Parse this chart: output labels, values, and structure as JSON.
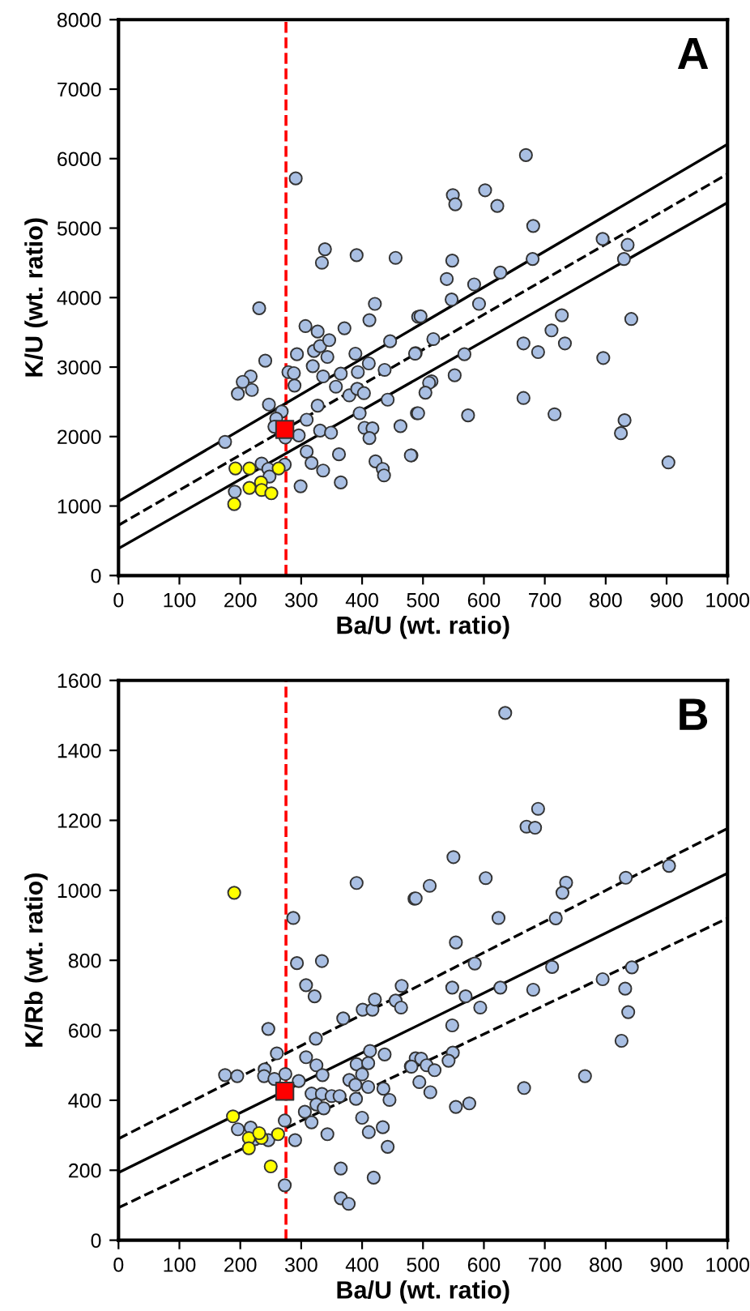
{
  "chart_data": [
    {
      "type": "scatter",
      "xlabel": "Ba/U (wt. ratio)",
      "ylabel": "K/U (wt. ratio)",
      "annotations": [
        "A"
      ],
      "xlim": [
        0,
        1000
      ],
      "ylim": [
        0,
        8000
      ],
      "xticks": [
        0,
        100,
        200,
        300,
        400,
        500,
        600,
        700,
        800,
        900,
        1000
      ],
      "yticks": [
        0,
        1000,
        2000,
        3000,
        4000,
        5000,
        6000,
        7000,
        8000
      ],
      "ref_lines": [
        {
          "axis": "x",
          "value": 275,
          "color": "#ff0000",
          "line_style": "dashed"
        }
      ],
      "series": [
        {
          "type": "line",
          "color": "#000000",
          "line_style": "solid",
          "x": [
            0,
            1000
          ],
          "values": [
            1067,
            6207
          ]
        },
        {
          "type": "line",
          "color": "#000000",
          "line_style": "dashed",
          "x": [
            0,
            1000
          ],
          "values": [
            724,
            5779
          ]
        },
        {
          "type": "line",
          "color": "#000000",
          "line_style": "solid",
          "x": [
            0,
            1000
          ],
          "values": [
            389,
            5366
          ]
        },
        {
          "color": "#a9bfe3",
          "marker": "circle",
          "x": [
            291,
            339,
            334,
            391,
            455,
            231,
            307,
            327,
            371,
            421,
            412,
            446,
            321,
            331,
            346,
            343,
            293,
            241,
            389,
            411,
            319,
            336,
            365,
            393,
            437,
            279,
            288,
            289,
            217,
            204,
            219,
            196,
            357,
            379,
            392,
            403,
            247,
            327,
            396,
            442,
            268,
            259,
            256,
            309,
            404,
            417,
            412,
            331,
            349,
            463,
            296,
            274,
            309,
            362,
            317,
            336,
            422,
            434,
            436,
            481,
            175,
            299,
            365,
            235,
            246,
            248,
            273,
            191,
            488,
            492,
            490,
            669,
            549,
            553,
            602,
            622,
            681,
            795,
            836,
            830,
            680,
            548,
            539,
            584,
            627,
            547,
            592,
            496,
            728,
            711,
            842,
            517,
            665,
            733,
            487,
            568,
            689,
            796,
            552,
            514,
            510,
            504,
            665,
            492,
            574,
            716,
            831,
            825,
            480,
            903
          ],
          "values": [
            5716,
            4696,
            4502,
            4611,
            4572,
            3847,
            3590,
            3512,
            3559,
            3910,
            3676,
            3372,
            3232,
            3302,
            3388,
            3146,
            3185,
            3092,
            3193,
            3053,
            3014,
            2866,
            2905,
            2928,
            2960,
            2928,
            2913,
            2734,
            2866,
            2788,
            2671,
            2617,
            2718,
            2593,
            2687,
            2625,
            2461,
            2445,
            2336,
            2531,
            2360,
            2259,
            2142,
            2243,
            2126,
            2118,
            1978,
            2087,
            2056,
            2150,
            2017,
            1986,
            1783,
            1745,
            1620,
            1511,
            1643,
            1534,
            1441,
            1729,
            1924,
            1285,
            1340,
            1612,
            1534,
            1425,
            1597,
            1207,
            3201,
            3723,
            2336,
            6051,
            5475,
            5343,
            5545,
            5319,
            5031,
            4844,
            4759,
            4556,
            4556,
            4533,
            4268,
            4190,
            4361,
            3972,
            3910,
            3731,
            3746,
            3528,
            3692,
            3403,
            3341,
            3341,
            3193,
            3185,
            3216,
            3131,
            2882,
            2796,
            2773,
            2632,
            2555,
            2336,
            2305,
            2321,
            2235,
            2048,
            1729,
            1628
          ]
        },
        {
          "color": "#ffff00",
          "marker": "circle",
          "x": [
            192,
            215,
            263,
            215,
            234,
            235,
            251,
            190
          ],
          "values": [
            1542,
            1542,
            1542,
            1262,
            1340,
            1231,
            1184,
            1028
          ]
        },
        {
          "color": "#ff0000",
          "marker": "square",
          "x": [
            273
          ],
          "values": [
            2103
          ]
        }
      ]
    },
    {
      "type": "scatter",
      "xlabel": "Ba/U (wt. ratio)",
      "ylabel": "K/Rb (wt. ratio)",
      "annotations": [
        "B"
      ],
      "xlim": [
        0,
        1000
      ],
      "ylim": [
        0,
        1600
      ],
      "xticks": [
        0,
        100,
        200,
        300,
        400,
        500,
        600,
        700,
        800,
        900,
        1000
      ],
      "yticks": [
        0,
        200,
        400,
        600,
        800,
        1000,
        1200,
        1400,
        1600
      ],
      "ref_lines": [
        {
          "axis": "x",
          "value": 275,
          "color": "#ff0000",
          "line_style": "dashed"
        }
      ],
      "series": [
        {
          "type": "line",
          "color": "#000000",
          "line_style": "dashed",
          "x": [
            0,
            1000
          ],
          "values": [
            290,
            1177
          ]
        },
        {
          "type": "line",
          "color": "#000000",
          "line_style": "solid",
          "x": [
            0,
            1000
          ],
          "values": [
            193,
            1049
          ]
        },
        {
          "type": "line",
          "color": "#000000",
          "line_style": "dashed",
          "x": [
            0,
            1000
          ],
          "values": [
            93,
            920
          ]
        },
        {
          "color": "#a9bfe3",
          "marker": "circle",
          "x": [
            391,
            486,
            287,
            293,
            334,
            308,
            322,
            465,
            369,
            401,
            417,
            421,
            455,
            464,
            246,
            324,
            260,
            308,
            413,
            437,
            391,
            410,
            480,
            488,
            175,
            195,
            240,
            239,
            256,
            274,
            296,
            325,
            335,
            379,
            389,
            400,
            410,
            435,
            317,
            334,
            350,
            363,
            325,
            337,
            390,
            445,
            306,
            317,
            273,
            343,
            400,
            411,
            434,
            196,
            217,
            224,
            246,
            290,
            442,
            365,
            419,
            273,
            365,
            378,
            635,
            689,
            670,
            684,
            550,
            511,
            488,
            603,
            833,
            904,
            735,
            729,
            624,
            718,
            554,
            585,
            712,
            843,
            795,
            832,
            837,
            548,
            627,
            570,
            681,
            594,
            548,
            826,
            549,
            542,
            497,
            506,
            481,
            519,
            494,
            512,
            766,
            666,
            554,
            576
          ],
          "values": [
            1021,
            976,
            921,
            792,
            798,
            729,
            697,
            727,
            634,
            659,
            659,
            688,
            685,
            665,
            604,
            576,
            534,
            523,
            541,
            531,
            503,
            506,
            497,
            520,
            472,
            469,
            488,
            469,
            461,
            475,
            455,
            500,
            472,
            458,
            444,
            474,
            438,
            433,
            419,
            418,
            412,
            412,
            388,
            377,
            404,
            401,
            367,
            337,
            342,
            303,
            350,
            309,
            323,
            317,
            322,
            289,
            286,
            286,
            267,
            205,
            179,
            157,
            120,
            104,
            1507,
            1233,
            1182,
            1179,
            1095,
            1013,
            977,
            1035,
            1036,
            1070,
            1022,
            993,
            921,
            920,
            851,
            791,
            781,
            780,
            746,
            719,
            652,
            722,
            722,
            697,
            716,
            665,
            614,
            570,
            536,
            513,
            519,
            500,
            496,
            486,
            452,
            423,
            469,
            435,
            381,
            391
          ]
        },
        {
          "color": "#ffff00",
          "marker": "circle",
          "x": [
            190,
            188,
            214,
            214,
            235,
            231,
            262,
            250
          ],
          "values": [
            993,
            354,
            292,
            263,
            292,
            306,
            303,
            211
          ]
        },
        {
          "color": "#ff0000",
          "marker": "square",
          "x": [
            273
          ],
          "values": [
            426
          ]
        }
      ]
    }
  ]
}
